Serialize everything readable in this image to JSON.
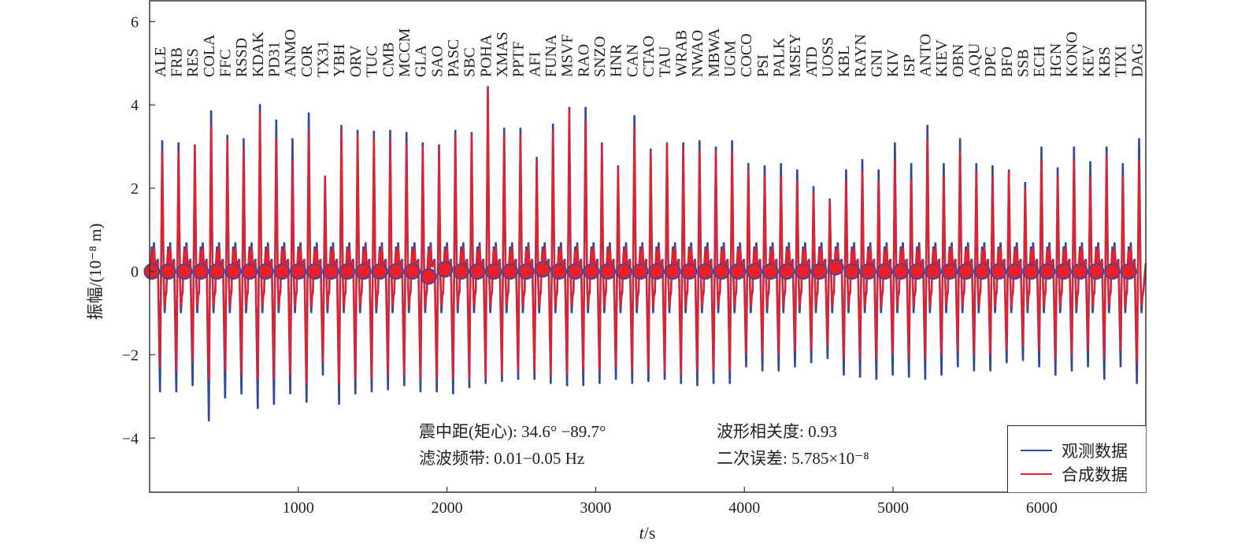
{
  "chart_data": {
    "type": "line",
    "title": "",
    "xlabel_var": "t",
    "xlabel_unit": "/s",
    "ylabel": "振幅/(10⁻⁸ m)",
    "xlim": [
      0,
      6700
    ],
    "ylim": [
      -5.3,
      6.5
    ],
    "xticks": [
      1000,
      2000,
      3000,
      4000,
      5000,
      6000
    ],
    "xtick_labels": [
      "1000",
      "2000",
      "3000",
      "4000",
      "5000",
      "6000"
    ],
    "yticks": [
      -4,
      -2,
      0,
      2,
      4,
      6
    ],
    "ytick_labels": [
      "−4",
      "−2",
      "0",
      "2",
      "4",
      "6"
    ],
    "grid": false,
    "legend_position": "bottom-right",
    "series": [
      {
        "name": "观测数据",
        "color": "#2e4a9e"
      },
      {
        "name": "合成数据",
        "color": "#e8202a"
      }
    ],
    "station_spacing_s": 109.5,
    "first_station_t": 15,
    "stations": [
      "ALE",
      "FRB",
      "RES",
      "COLA",
      "FFC",
      "RSSD",
      "KDAK",
      "PD31",
      "ANMO",
      "COR",
      "TX31",
      "YBH",
      "ORV",
      "TUC",
      "CMB",
      "MCCM",
      "GLA",
      "SAO",
      "PASC",
      "SBC",
      "POHA",
      "XMAS",
      "PPTF",
      "AFI",
      "FUNA",
      "MSVF",
      "RAO",
      "SNZO",
      "HNR",
      "CAN",
      "CTAO",
      "TAU",
      "WRAB",
      "NWAO",
      "MBWA",
      "UGM",
      "COCO",
      "PSI",
      "PALK",
      "MSEY",
      "ATD",
      "UOSS",
      "KBL",
      "RAYN",
      "GNI",
      "KIV",
      "ISP",
      "ANTO",
      "KIEV",
      "OBN",
      "AQU",
      "DPC",
      "BFO",
      "SSB",
      "ECH",
      "HGN",
      "KONO",
      "KEV",
      "KBS",
      "TIXI",
      "DAG"
    ],
    "obs_max": [
      3.15,
      3.1,
      3.05,
      3.87,
      3.28,
      3.2,
      4.02,
      3.65,
      3.2,
      3.82,
      2.3,
      3.52,
      3.4,
      3.38,
      3.4,
      3.35,
      3.1,
      3.05,
      3.4,
      3.35,
      4.45,
      3.45,
      3.45,
      2.75,
      3.55,
      3.95,
      3.95,
      3.1,
      2.55,
      3.75,
      2.95,
      3.1,
      3.1,
      3.15,
      3.0,
      3.15,
      2.6,
      2.55,
      2.6,
      2.45,
      2.05,
      1.75,
      2.45,
      2.7,
      2.45,
      3.1,
      2.6,
      3.52,
      2.6,
      3.2,
      2.6,
      2.55,
      2.45,
      2.15,
      3.0,
      2.5,
      3.0,
      2.65,
      3.0,
      2.6,
      3.2
    ],
    "syn_max": [
      2.9,
      2.9,
      3.05,
      3.5,
      3.2,
      3.0,
      3.8,
      3.2,
      2.7,
      3.4,
      2.3,
      3.4,
      3.3,
      3.2,
      3.2,
      3.1,
      3.0,
      3.0,
      3.3,
      3.3,
      4.45,
      3.3,
      3.3,
      2.7,
      3.4,
      3.9,
      3.6,
      3.1,
      2.5,
      3.5,
      2.9,
      3.1,
      3.0,
      2.9,
      2.9,
      2.9,
      2.5,
      2.3,
      2.3,
      2.2,
      1.9,
      1.7,
      2.2,
      2.4,
      2.2,
      2.7,
      2.2,
      3.2,
      2.3,
      2.9,
      2.4,
      2.3,
      2.4,
      2.0,
      2.7,
      2.3,
      2.7,
      2.3,
      2.8,
      2.3,
      2.7
    ],
    "obs_min": [
      -2.9,
      -2.9,
      -2.75,
      -3.6,
      -3.05,
      -2.95,
      -3.3,
      -3.2,
      -2.95,
      -3.15,
      -2.5,
      -3.2,
      -2.95,
      -2.9,
      -2.85,
      -2.75,
      -2.9,
      -2.9,
      -2.95,
      -2.8,
      -2.7,
      -2.65,
      -2.6,
      -2.6,
      -2.7,
      -2.75,
      -2.75,
      -2.7,
      -2.6,
      -2.7,
      -2.65,
      -2.6,
      -2.7,
      -2.75,
      -2.7,
      -2.7,
      -2.3,
      -2.4,
      -2.4,
      -2.3,
      -2.2,
      -2.1,
      -2.5,
      -2.55,
      -2.6,
      -2.5,
      -2.55,
      -2.6,
      -2.5,
      -2.3,
      -2.4,
      -2.4,
      -2.2,
      -2.15,
      -2.3,
      -2.5,
      -2.4,
      -2.3,
      -2.6,
      -2.3,
      -2.7
    ],
    "syn_min": [
      -2.3,
      -2.4,
      -2.2,
      -2.6,
      -2.4,
      -2.5,
      -2.6,
      -2.6,
      -2.5,
      -2.7,
      -2.2,
      -2.7,
      -2.6,
      -2.6,
      -2.5,
      -2.5,
      -2.6,
      -2.6,
      -2.6,
      -2.6,
      -2.6,
      -2.5,
      -2.4,
      -2.4,
      -2.5,
      -2.5,
      -2.4,
      -2.4,
      -2.3,
      -2.4,
      -2.4,
      -2.4,
      -2.5,
      -2.4,
      -2.4,
      -2.4,
      -2.0,
      -2.0,
      -2.0,
      -1.9,
      -1.9,
      -1.8,
      -2.1,
      -2.1,
      -2.1,
      -2.0,
      -2.1,
      -2.1,
      -2.0,
      -1.9,
      -2.0,
      -2.0,
      -1.9,
      -1.8,
      -1.9,
      -2.1,
      -2.0,
      -1.9,
      -2.1,
      -1.9,
      -2.2
    ],
    "marker_values": [
      0,
      0,
      0,
      0,
      0,
      0,
      0,
      0,
      0,
      0,
      0,
      0,
      0,
      0,
      0,
      0,
      0,
      -0.12,
      0.05,
      0,
      0,
      0,
      0,
      0,
      0.05,
      0,
      0,
      0,
      0,
      0,
      0,
      0,
      0,
      0,
      0,
      0,
      0,
      0,
      0,
      0,
      0,
      0,
      0.1,
      0,
      0,
      0,
      0,
      0,
      0,
      0,
      0,
      0,
      0,
      0,
      0,
      0,
      0,
      0,
      0,
      0,
      0
    ],
    "annotations": {
      "distance": "震中距(矩心): 34.6° −89.7°",
      "band": "滤波频带: 0.01−0.05 Hz",
      "correlation": "波形相关度: 0.93",
      "misfit": "二次误差: 5.785×10⁻⁸"
    }
  }
}
